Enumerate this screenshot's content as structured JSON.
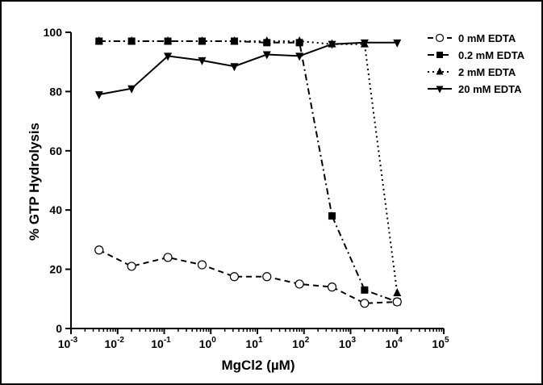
{
  "chart_data": {
    "type": "line",
    "xlabel": "MgCl2 (µM)",
    "ylabel": "% GTP Hydrolysis",
    "xscale": "log",
    "xlim": [
      0.001,
      100000
    ],
    "ylim": [
      0,
      100
    ],
    "xticks": [
      {
        "value": 0.001,
        "base": "10",
        "exp": "-3"
      },
      {
        "value": 0.01,
        "base": "10",
        "exp": "-2"
      },
      {
        "value": 0.1,
        "base": "10",
        "exp": "-1"
      },
      {
        "value": 1,
        "base": "10",
        "exp": "0"
      },
      {
        "value": 10,
        "base": "10",
        "exp": "1"
      },
      {
        "value": 100,
        "base": "10",
        "exp": "2"
      },
      {
        "value": 1000,
        "base": "10",
        "exp": "3"
      },
      {
        "value": 10000,
        "base": "10",
        "exp": "4"
      },
      {
        "value": 100000,
        "base": "10",
        "exp": "5"
      }
    ],
    "yticks": [
      0,
      20,
      40,
      60,
      80,
      100
    ],
    "grid": false,
    "legend_position": "top-right",
    "series": [
      {
        "name": "0 mM EDTA",
        "marker": "open-circle",
        "linestyle": "dashed",
        "x": [
          0.004,
          0.02,
          0.12,
          0.65,
          3.2,
          16,
          80,
          400,
          2000,
          10000
        ],
        "y": [
          26.5,
          21,
          24,
          21.5,
          17.5,
          17.5,
          15,
          14,
          8.5,
          9
        ]
      },
      {
        "name": "0.2 mM EDTA",
        "marker": "square",
        "linestyle": "dashdot",
        "x": [
          0.004,
          0.02,
          0.12,
          0.65,
          3.2,
          16,
          80,
          400,
          2000,
          10000
        ],
        "y": [
          97,
          97,
          97,
          97,
          97,
          96.5,
          96.5,
          38,
          13,
          9
        ]
      },
      {
        "name": "2 mM EDTA",
        "marker": "triangle-up",
        "linestyle": "dotted",
        "x": [
          0.004,
          0.02,
          0.12,
          0.65,
          3.2,
          16,
          80,
          400,
          2000,
          10000
        ],
        "y": [
          97,
          97,
          97,
          97,
          97,
          97,
          97,
          96,
          96,
          12
        ]
      },
      {
        "name": "20 mM EDTA",
        "marker": "triangle-down",
        "linestyle": "solid",
        "x": [
          0.004,
          0.02,
          0.12,
          0.65,
          3.2,
          16,
          80,
          400,
          2000,
          10000
        ],
        "y": [
          79,
          81,
          92,
          90.5,
          88.5,
          92.5,
          92,
          96,
          96.5,
          96.5
        ]
      }
    ]
  }
}
